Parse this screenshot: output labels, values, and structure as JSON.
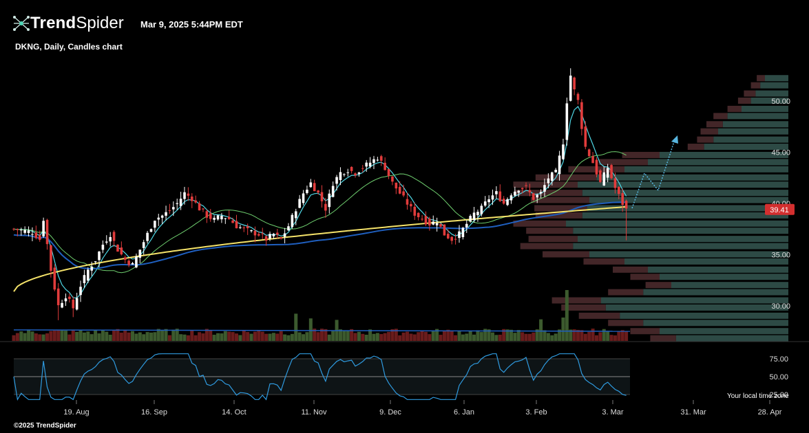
{
  "header": {
    "brand_bold": "Trend",
    "brand_thin": "Spider",
    "timestamp": "Mar 9, 2025 5:44PM EDT",
    "chart_title": "DKNG, Daily, Candles chart"
  },
  "footer": {
    "copyright": "©2025 TrendSpider",
    "local_time_label": "Your local time zone"
  },
  "colors": {
    "up": "#ffffff",
    "down": "#e23c3c",
    "ema_fast": "#4fd8e6",
    "sma_mid": "#6fcf6f",
    "sma_long": "#1f5fbf",
    "vwap": "#f5e36a",
    "rsi": "#2f9be0",
    "arrow": "#58b6e0",
    "last_price_bg": "#d32f2f",
    "vp_green": "#2d4a45",
    "vp_red": "#4a2a2c"
  },
  "chart_data": {
    "type": "candlestick",
    "symbol": "DKNG",
    "interval": "Daily",
    "price_axis": {
      "ticks": [
        30.0,
        35.0,
        40.0,
        45.0,
        50.0
      ],
      "labels": [
        "30.00",
        "35.00",
        "40.00",
        "45.00",
        "50.00"
      ]
    },
    "date_axis": {
      "labels": [
        "19. Aug",
        "16. Sep",
        "14. Oct",
        "11. Nov",
        "9. Dec",
        "6. Jan",
        "3. Feb",
        "3. Mar",
        "31. Mar",
        "28. Apr"
      ]
    },
    "last_price": 39.41,
    "last_price_label": "39.41",
    "rsi_axis": {
      "ticks": [
        75,
        50,
        25
      ],
      "labels": [
        "75.00",
        "50.00",
        "25.00"
      ]
    },
    "price_path": [
      [
        0,
        37.5
      ],
      [
        5,
        37.2
      ],
      [
        7,
        36.5
      ],
      [
        8,
        38.5
      ],
      [
        9,
        36.0
      ],
      [
        10,
        33.5
      ],
      [
        12,
        30.0
      ],
      [
        14,
        31.0
      ],
      [
        16,
        29.8
      ],
      [
        18,
        32.0
      ],
      [
        20,
        33.5
      ],
      [
        22,
        34.5
      ],
      [
        24,
        36.0
      ],
      [
        26,
        37.0
      ],
      [
        28,
        35.5
      ],
      [
        30,
        34.5
      ],
      [
        32,
        34.0
      ],
      [
        34,
        35.5
      ],
      [
        36,
        37.0
      ],
      [
        38,
        38.5
      ],
      [
        40,
        38.8
      ],
      [
        42,
        39.3
      ],
      [
        44,
        40.0
      ],
      [
        46,
        41.0
      ],
      [
        48,
        40.5
      ],
      [
        50,
        39.5
      ],
      [
        52,
        38.8
      ],
      [
        54,
        38.4
      ],
      [
        56,
        38.8
      ],
      [
        58,
        38.5
      ],
      [
        60,
        37.8
      ],
      [
        62,
        37.5
      ],
      [
        64,
        37.2
      ],
      [
        66,
        37.0
      ],
      [
        68,
        36.5
      ],
      [
        70,
        37.0
      ],
      [
        72,
        36.5
      ],
      [
        74,
        37.8
      ],
      [
        76,
        39.5
      ],
      [
        78,
        41.0
      ],
      [
        80,
        42.0
      ],
      [
        82,
        41.0
      ],
      [
        84,
        39.5
      ],
      [
        86,
        42.0
      ],
      [
        88,
        43.0
      ],
      [
        90,
        43.3
      ],
      [
        92,
        43.0
      ],
      [
        94,
        43.5
      ],
      [
        96,
        44.0
      ],
      [
        98,
        44.5
      ],
      [
        100,
        43.5
      ],
      [
        102,
        42.0
      ],
      [
        104,
        41.0
      ],
      [
        106,
        40.0
      ],
      [
        108,
        39.0
      ],
      [
        110,
        38.5
      ],
      [
        112,
        38.0
      ],
      [
        114,
        38.3
      ],
      [
        116,
        37.0
      ],
      [
        118,
        36.5
      ],
      [
        120,
        37.0
      ],
      [
        122,
        38.0
      ],
      [
        124,
        39.0
      ],
      [
        126,
        39.5
      ],
      [
        128,
        40.5
      ],
      [
        130,
        41.0
      ],
      [
        132,
        40.0
      ],
      [
        134,
        41.0
      ],
      [
        136,
        41.5
      ],
      [
        138,
        41.5
      ],
      [
        140,
        40.5
      ],
      [
        142,
        41.0
      ],
      [
        144,
        42.5
      ],
      [
        146,
        43.0
      ],
      [
        148,
        46.0
      ],
      [
        149,
        50.0
      ],
      [
        150,
        52.5
      ],
      [
        151,
        51.0
      ],
      [
        152,
        50.0
      ],
      [
        153,
        47.5
      ],
      [
        154,
        45.5
      ],
      [
        156,
        44.0
      ],
      [
        158,
        42.0
      ],
      [
        160,
        43.5
      ],
      [
        162,
        41.5
      ],
      [
        164,
        40.0
      ],
      [
        165,
        39.4
      ]
    ],
    "volume_profile_bins": [
      {
        "price": 52.2,
        "green": 0.1,
        "red": 0.07
      },
      {
        "price": 51.5,
        "green": 0.12,
        "red": 0.08
      },
      {
        "price": 50.7,
        "green": 0.14,
        "red": 0.1
      },
      {
        "price": 50.0,
        "green": 0.16,
        "red": 0.11
      },
      {
        "price": 49.2,
        "green": 0.2,
        "red": 0.12
      },
      {
        "price": 48.5,
        "green": 0.26,
        "red": 0.12
      },
      {
        "price": 47.7,
        "green": 0.28,
        "red": 0.14
      },
      {
        "price": 47.0,
        "green": 0.3,
        "red": 0.15
      },
      {
        "price": 46.2,
        "green": 0.32,
        "red": 0.14
      },
      {
        "price": 45.5,
        "green": 0.36,
        "red": 0.14
      },
      {
        "price": 44.7,
        "green": 0.55,
        "red": 0.32
      },
      {
        "price": 44.0,
        "green": 0.6,
        "red": 0.42
      },
      {
        "price": 43.3,
        "green": 0.7,
        "red": 0.48
      },
      {
        "price": 42.5,
        "green": 0.82,
        "red": 0.52
      },
      {
        "price": 41.8,
        "green": 0.9,
        "red": 0.55
      },
      {
        "price": 41.0,
        "green": 0.88,
        "red": 0.58
      },
      {
        "price": 40.3,
        "green": 0.85,
        "red": 0.5
      },
      {
        "price": 39.5,
        "green": 0.86,
        "red": 0.45
      },
      {
        "price": 38.8,
        "green": 0.88,
        "red": 0.4
      },
      {
        "price": 38.0,
        "green": 0.95,
        "red": 0.45
      },
      {
        "price": 37.3,
        "green": 0.92,
        "red": 0.4
      },
      {
        "price": 36.5,
        "green": 0.9,
        "red": 0.42
      },
      {
        "price": 35.8,
        "green": 0.92,
        "red": 0.45
      },
      {
        "price": 35.0,
        "green": 0.85,
        "red": 0.4
      },
      {
        "price": 34.3,
        "green": 0.7,
        "red": 0.35
      },
      {
        "price": 33.5,
        "green": 0.6,
        "red": 0.3
      },
      {
        "price": 32.8,
        "green": 0.55,
        "red": 0.25
      },
      {
        "price": 32.0,
        "green": 0.5,
        "red": 0.22
      },
      {
        "price": 31.3,
        "green": 0.62,
        "red": 0.3
      },
      {
        "price": 30.5,
        "green": 0.8,
        "red": 0.42
      },
      {
        "price": 29.8,
        "green": 0.78,
        "red": 0.38
      },
      {
        "price": 29.0,
        "green": 0.72,
        "red": 0.35
      },
      {
        "price": 28.3,
        "green": 0.62,
        "red": 0.3
      },
      {
        "price": 27.5,
        "green": 0.55,
        "red": 0.25
      },
      {
        "price": 26.8,
        "green": 0.48,
        "red": 0.22
      }
    ]
  }
}
